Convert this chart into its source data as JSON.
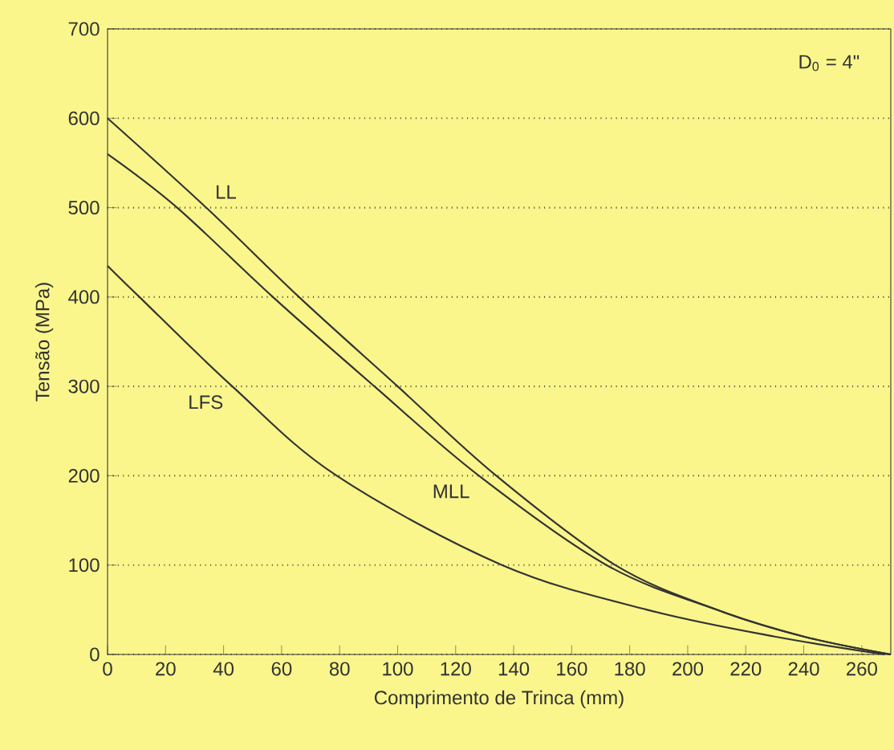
{
  "chart_data": {
    "type": "line",
    "xlabel": "Comprimento de Trinca (mm)",
    "ylabel": "Tensão (MPa)",
    "annotations": [
      "D$_{0}$ = 4\""
    ],
    "xlim": [
      0,
      270
    ],
    "ylim": [
      0,
      700
    ],
    "xticks": [
      0,
      20,
      40,
      60,
      80,
      100,
      120,
      140,
      160,
      180,
      200,
      220,
      240,
      260
    ],
    "yticks": [
      0,
      100,
      200,
      300,
      400,
      500,
      600,
      700
    ],
    "grid": "y",
    "marker": "none",
    "line_style": "solid",
    "series": [
      {
        "name": "LL",
        "color": "#333333",
        "x": [
          0,
          34,
          66,
          100,
          134,
          175,
          210,
          240,
          270
        ],
        "values": [
          600,
          500,
          400,
          300,
          200,
          100,
          50,
          20,
          0
        ]
      },
      {
        "name": "MLL",
        "color": "#333333",
        "x": [
          0,
          24,
          57,
          92,
          128,
          172,
          210,
          240,
          270
        ],
        "values": [
          560,
          500,
          400,
          300,
          200,
          100,
          50,
          20,
          0
        ]
      },
      {
        "name": "LFS",
        "color": "#333333",
        "x": [
          0,
          11,
          43,
          79,
          136,
          186,
          230,
          268
        ],
        "values": [
          435,
          400,
          300,
          200,
          100,
          50,
          20,
          0
        ]
      }
    ]
  }
}
